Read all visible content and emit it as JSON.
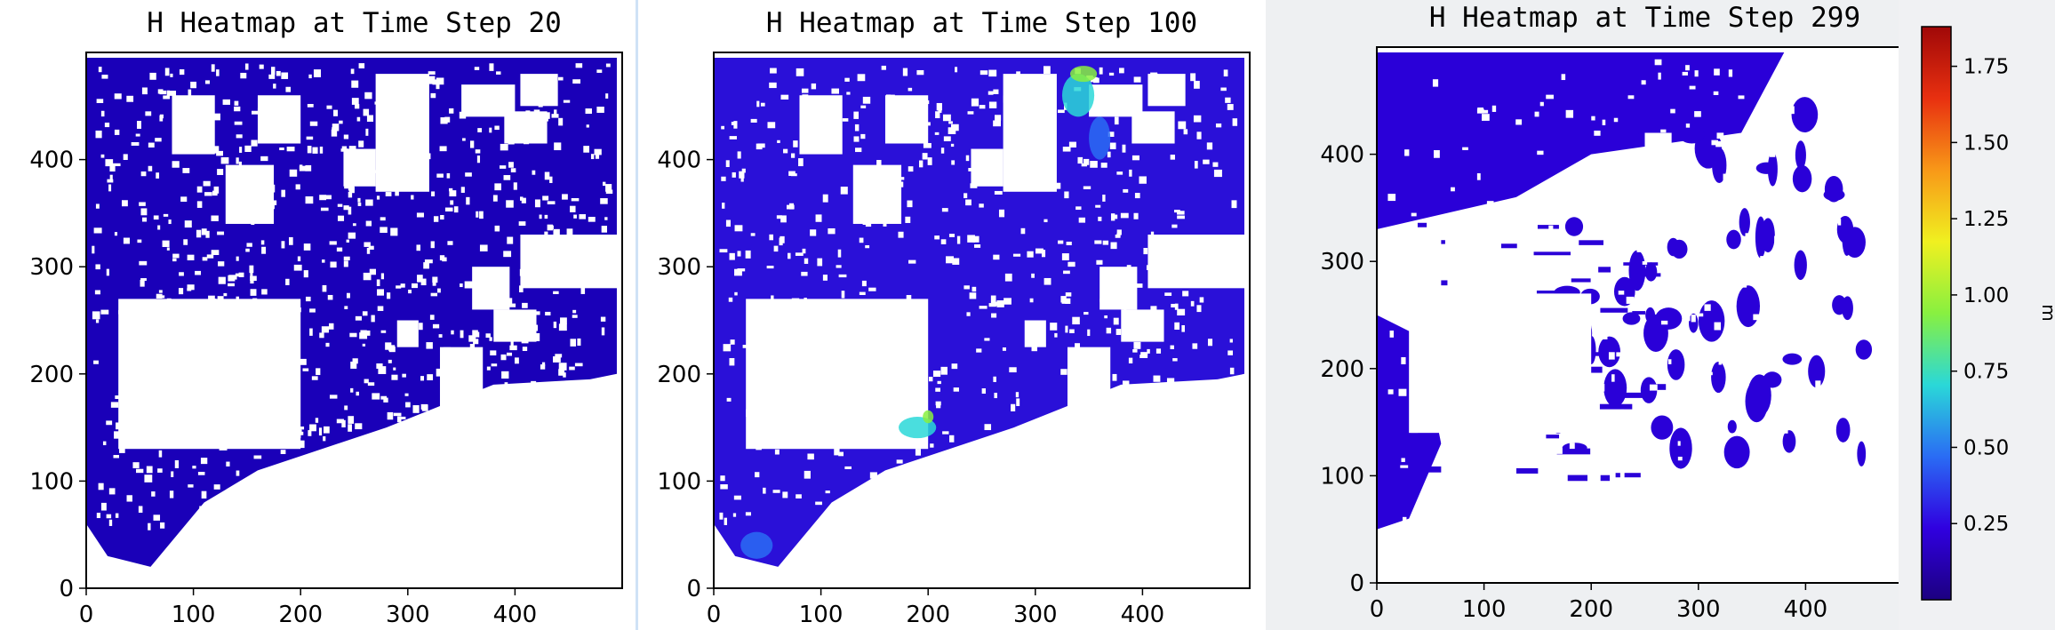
{
  "chart_data": [
    {
      "type": "heatmap",
      "title": "H Heatmap at Time Step 20",
      "xlabel": "",
      "ylabel": "",
      "xlim": [
        0,
        500
      ],
      "ylim": [
        0,
        500
      ],
      "x_ticks": [
        0,
        100,
        200,
        300,
        400
      ],
      "y_ticks": [
        0,
        100,
        200,
        300,
        400
      ],
      "value_range": [
        0.0,
        0.3
      ],
      "dominant_color": "#1a00b8"
    },
    {
      "type": "heatmap",
      "title": "H Heatmap at Time Step 100",
      "xlabel": "",
      "ylabel": "",
      "xlim": [
        0,
        500
      ],
      "ylim": [
        0,
        500
      ],
      "x_ticks": [
        0,
        100,
        200,
        300,
        400
      ],
      "y_ticks": [
        0,
        100,
        200,
        300,
        400
      ],
      "value_range": [
        0.0,
        1.1
      ],
      "dominant_color": "#2a10d8"
    },
    {
      "type": "heatmap",
      "title": "H Heatmap at Time Step 299",
      "xlabel": "",
      "ylabel": "",
      "xlim": [
        0,
        500
      ],
      "ylim": [
        0,
        500
      ],
      "x_ticks": [
        0,
        100,
        200,
        300,
        400
      ],
      "y_ticks": [
        0,
        100,
        200,
        300,
        400
      ],
      "value_range": [
        0.0,
        0.4
      ],
      "dominant_color": "#2a00d8"
    }
  ],
  "colorbar": {
    "label": "m",
    "ticks": [
      "0.25",
      "0.50",
      "0.75",
      "1.00",
      "1.25",
      "1.50",
      "1.75"
    ],
    "tick_values": [
      0.25,
      0.5,
      0.75,
      1.0,
      1.25,
      1.5,
      1.75
    ],
    "range": [
      0.0,
      1.88
    ],
    "colormap": "jet",
    "colors": [
      "#1c0080",
      "#3000e0",
      "#2a6cf4",
      "#2ad8d8",
      "#88f040",
      "#f0f020",
      "#f89818",
      "#e83010",
      "#a00808"
    ]
  }
}
